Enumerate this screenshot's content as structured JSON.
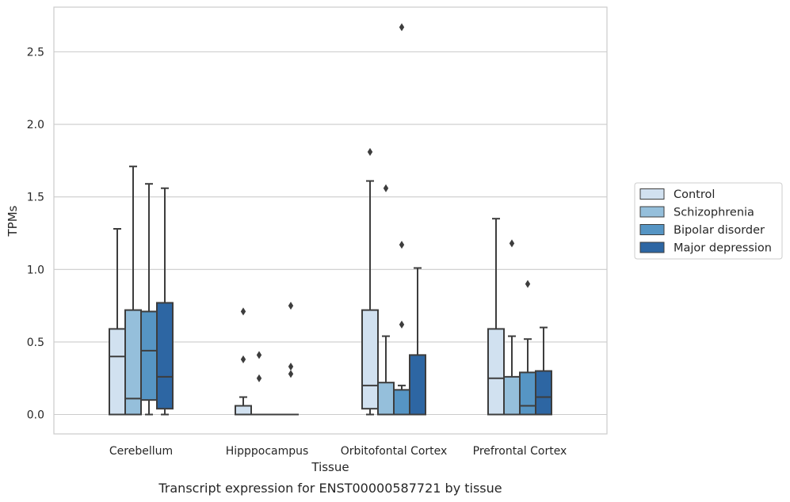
{
  "caption": "Transcript expression for ENST00000587721 by tissue",
  "chart_data": {
    "type": "boxplot",
    "xlabel": "Tissue",
    "ylabel": "TPMs",
    "ylim": [
      -0.13,
      2.82
    ],
    "yticks": [
      0.0,
      0.5,
      1.0,
      1.5,
      2.0,
      2.5
    ],
    "ytick_labels": [
      "0.0",
      "0.5",
      "1.0",
      "1.5",
      "2.0",
      "2.5"
    ],
    "categories": [
      "Cerebellum",
      "Hipppocampus",
      "Orbitofontal Cortex",
      "Prefrontal Cortex"
    ],
    "grid": "horizontal",
    "legend_position": "right",
    "series": [
      {
        "name": "Control",
        "color": "#d1e1f0",
        "boxes": [
          {
            "whislo": 0.0,
            "q1": 0.0,
            "med": 0.4,
            "q3": 0.59,
            "whishi": 1.28,
            "fliers": []
          },
          {
            "whislo": 0.0,
            "q1": 0.0,
            "med": 0.0,
            "q3": 0.06,
            "whishi": 0.12,
            "fliers": [
              0.38,
              0.71
            ]
          },
          {
            "whislo": 0.0,
            "q1": 0.04,
            "med": 0.2,
            "q3": 0.72,
            "whishi": 1.61,
            "fliers": [
              1.81
            ]
          },
          {
            "whislo": 0.0,
            "q1": 0.0,
            "med": 0.25,
            "q3": 0.59,
            "whishi": 1.35,
            "fliers": []
          }
        ]
      },
      {
        "name": "Schizophrenia",
        "color": "#95bfdb",
        "boxes": [
          {
            "whislo": 0.0,
            "q1": 0.0,
            "med": 0.11,
            "q3": 0.72,
            "whishi": 1.71,
            "fliers": []
          },
          {
            "whislo": 0.0,
            "q1": 0.0,
            "med": 0.0,
            "q3": 0.0,
            "whishi": 0.0,
            "fliers": [
              0.25,
              0.41
            ]
          },
          {
            "whislo": 0.0,
            "q1": 0.0,
            "med": 0.0,
            "q3": 0.22,
            "whishi": 0.54,
            "fliers": [
              1.56
            ]
          },
          {
            "whislo": 0.0,
            "q1": 0.0,
            "med": 0.0,
            "q3": 0.26,
            "whishi": 0.54,
            "fliers": [
              1.18
            ]
          }
        ]
      },
      {
        "name": "Bipolar disorder",
        "color": "#5695c4",
        "boxes": [
          {
            "whislo": 0.0,
            "q1": 0.1,
            "med": 0.44,
            "q3": 0.71,
            "whishi": 1.59,
            "fliers": []
          },
          {
            "whislo": 0.0,
            "q1": 0.0,
            "med": 0.0,
            "q3": 0.0,
            "whishi": 0.0,
            "fliers": []
          },
          {
            "whislo": 0.0,
            "q1": 0.0,
            "med": 0.0,
            "q3": 0.17,
            "whishi": 0.2,
            "fliers": [
              0.62,
              1.17,
              2.67
            ]
          },
          {
            "whislo": 0.0,
            "q1": 0.0,
            "med": 0.06,
            "q3": 0.29,
            "whishi": 0.52,
            "fliers": [
              0.9
            ]
          }
        ]
      },
      {
        "name": "Major depression",
        "color": "#2d66a3",
        "boxes": [
          {
            "whislo": 0.0,
            "q1": 0.04,
            "med": 0.26,
            "q3": 0.77,
            "whishi": 1.56,
            "fliers": []
          },
          {
            "whislo": 0.0,
            "q1": 0.0,
            "med": 0.0,
            "q3": 0.0,
            "whishi": 0.0,
            "fliers": [
              0.28,
              0.33,
              0.75
            ]
          },
          {
            "whislo": 0.0,
            "q1": 0.0,
            "med": 0.0,
            "q3": 0.41,
            "whishi": 1.01,
            "fliers": []
          },
          {
            "whislo": 0.0,
            "q1": 0.0,
            "med": 0.12,
            "q3": 0.3,
            "whishi": 0.6,
            "fliers": []
          }
        ]
      }
    ]
  }
}
